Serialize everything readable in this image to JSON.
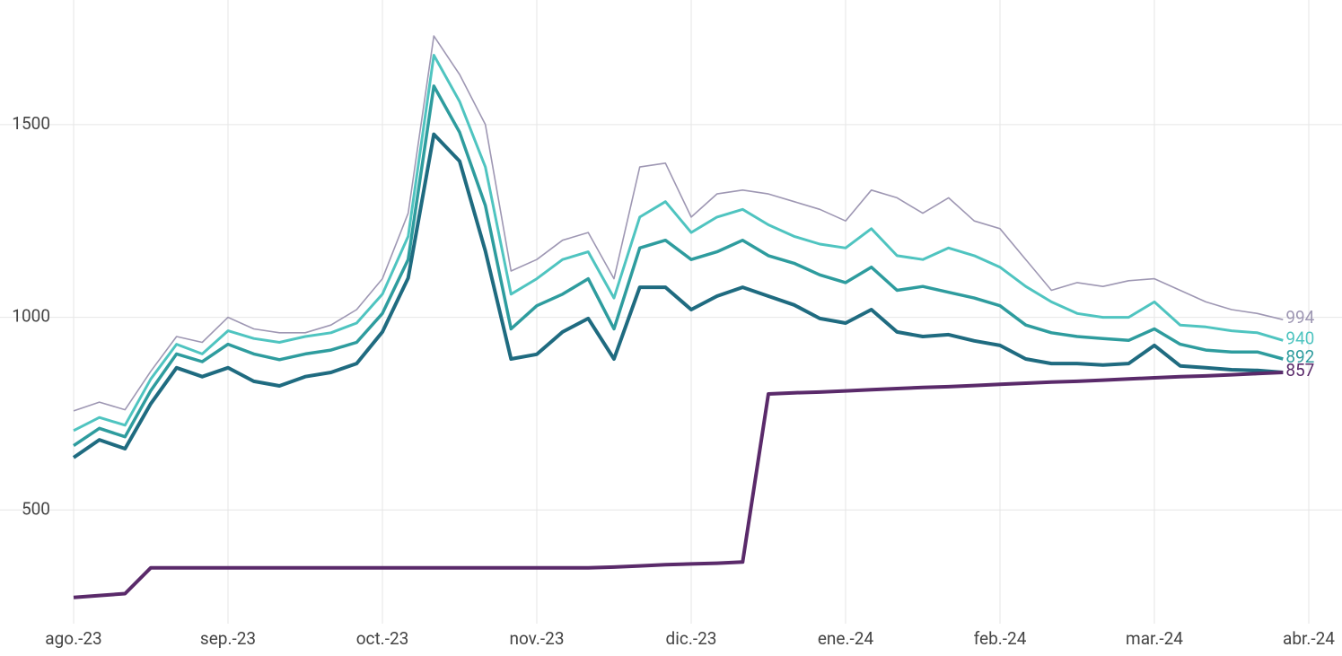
{
  "chart_data": {
    "type": "line",
    "categories": [
      "ago.-23",
      null,
      null,
      null,
      null,
      null,
      "sep.-23",
      null,
      null,
      null,
      null,
      null,
      "oct.-23",
      null,
      null,
      null,
      null,
      null,
      "nov.-23",
      null,
      null,
      null,
      null,
      null,
      "dic.-23",
      null,
      null,
      null,
      null,
      null,
      "ene.-24",
      null,
      null,
      null,
      null,
      null,
      "feb.-24",
      null,
      null,
      null,
      null,
      null,
      "mar.-24",
      null,
      null,
      null,
      null,
      null,
      "abr.-24"
    ],
    "series": [
      {
        "color": "#9e97b3",
        "width": 1.6,
        "label_last": true,
        "values": [
          757,
          780,
          760,
          860,
          950,
          935,
          1000,
          970,
          960,
          960,
          980,
          1020,
          1100,
          1270,
          1730,
          1630,
          1500,
          1120,
          1150,
          1200,
          1220,
          1100,
          1390,
          1400,
          1260,
          1320,
          1330,
          1320,
          1300,
          1280,
          1250,
          1330,
          1310,
          1270,
          1310,
          1250,
          1230,
          1150,
          1070,
          1090,
          1080,
          1095,
          1100,
          1070,
          1040,
          1020,
          1010,
          994,
          null
        ]
      },
      {
        "color": "#4fc4c0",
        "width": 3,
        "label_last": true,
        "values": [
          706,
          740,
          720,
          840,
          930,
          905,
          965,
          945,
          935,
          950,
          960,
          985,
          1060,
          1210,
          1680,
          1560,
          1390,
          1060,
          1100,
          1150,
          1170,
          1050,
          1260,
          1300,
          1220,
          1260,
          1280,
          1240,
          1210,
          1190,
          1180,
          1230,
          1160,
          1150,
          1180,
          1160,
          1130,
          1080,
          1040,
          1010,
          1000,
          1000,
          1040,
          980,
          975,
          965,
          960,
          940,
          null
        ]
      },
      {
        "color": "#2e9c9e",
        "width": 3.5,
        "label_last": true,
        "values": [
          667,
          712,
          690,
          810,
          905,
          885,
          930,
          905,
          890,
          905,
          915,
          935,
          1010,
          1150,
          1600,
          1480,
          1290,
          970,
          1030,
          1060,
          1100,
          970,
          1180,
          1200,
          1150,
          1170,
          1200,
          1160,
          1140,
          1110,
          1090,
          1130,
          1070,
          1080,
          1065,
          1050,
          1030,
          980,
          960,
          950,
          945,
          940,
          970,
          930,
          915,
          910,
          910,
          892,
          null
        ]
      },
      {
        "color": "#1f6b80",
        "width": 4,
        "label_last": false,
        "values": [
          636,
          682,
          659,
          776,
          869,
          846,
          869,
          834,
          822,
          846,
          857,
          880,
          962,
          1102,
          1475,
          1405,
          1172,
          892,
          904,
          962,
          997,
          892,
          1078,
          1078,
          1020,
          1055,
          1078,
          1055,
          1032,
          997,
          985,
          1020,
          962,
          950,
          955,
          939,
          927,
          892,
          880,
          880,
          876,
          880,
          927,
          874,
          869,
          864,
          862,
          857,
          null
        ]
      },
      {
        "color": "#5a2a6a",
        "width": 4,
        "label_last": true,
        "values": [
          273,
          278,
          283,
          350,
          350,
          350,
          350,
          350,
          350,
          350,
          350,
          350,
          350,
          350,
          350,
          350,
          350,
          350,
          350,
          350,
          350,
          352,
          355,
          358,
          360,
          362,
          365,
          801,
          804,
          806,
          809,
          812,
          815,
          818,
          820,
          823,
          826,
          829,
          832,
          834,
          837,
          840,
          843,
          846,
          848,
          851,
          854,
          857,
          null
        ]
      }
    ],
    "ylim": [
      205,
      1800
    ],
    "yticks": [
      500,
      1000,
      1500
    ],
    "grid": true
  }
}
